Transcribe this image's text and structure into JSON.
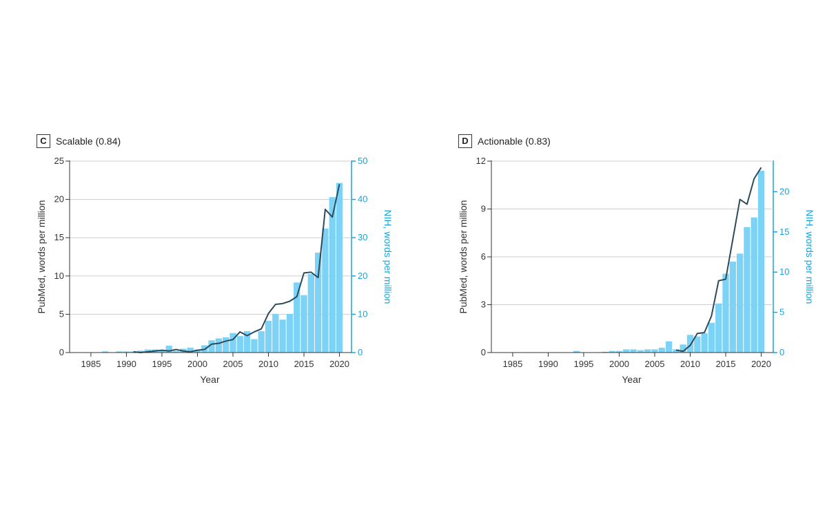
{
  "colors": {
    "bar": "#7dd3f5",
    "line": "#2c4a5a",
    "right_axis": "#1aa3d9",
    "grid": "#cccccc"
  },
  "chart_data": [
    {
      "type": "bar+line",
      "panel_letter": "C",
      "title": "Scalable (0.84)",
      "xlabel": "Year",
      "ylabel": "PubMed, words per million",
      "ylabel_right": "NIH, words per million",
      "xlim": [
        1982,
        2021.5
      ],
      "x_ticks": [
        1985,
        1990,
        1995,
        2000,
        2005,
        2010,
        2015,
        2020
      ],
      "ylim": [
        0,
        25
      ],
      "y_ticks": [
        0,
        5,
        10,
        15,
        20,
        25
      ],
      "ylim_right": [
        0,
        50
      ],
      "y_ticks_right": [
        0,
        10,
        20,
        30,
        40,
        50
      ],
      "grid": true,
      "bars": {
        "name": "NIH",
        "axis": "right",
        "x": [
          1987,
          1988,
          1989,
          1990,
          1991,
          1992,
          1993,
          1994,
          1995,
          1996,
          1997,
          1998,
          1999,
          2000,
          2001,
          2002,
          2003,
          2004,
          2005,
          2006,
          2007,
          2008,
          2009,
          2010,
          2011,
          2012,
          2013,
          2014,
          2015,
          2016,
          2017,
          2018,
          2019,
          2020
        ],
        "values": [
          0.3,
          0,
          0.3,
          0.3,
          0.3,
          0.5,
          0.8,
          0.8,
          0.5,
          1.8,
          0.4,
          1.0,
          1.3,
          0.8,
          1.9,
          3.2,
          3.7,
          4.0,
          5.1,
          4.3,
          5.6,
          3.5,
          5.6,
          8.3,
          10.1,
          8.6,
          10.1,
          18.3,
          15.0,
          20.5,
          26.1,
          32.4,
          40.6,
          44.3
        ]
      },
      "line": {
        "name": "PubMed",
        "axis": "left",
        "x": [
          1991,
          1992,
          1993,
          1994,
          1995,
          1996,
          1997,
          1998,
          1999,
          2000,
          2001,
          2002,
          2003,
          2004,
          2005,
          2006,
          2007,
          2008,
          2009,
          2010,
          2011,
          2012,
          2013,
          2014,
          2015,
          2016,
          2017,
          2018,
          2019,
          2020
        ],
        "values": [
          0.1,
          0,
          0.1,
          0.2,
          0.3,
          0.2,
          0.4,
          0.2,
          0.1,
          0.3,
          0.4,
          1.1,
          1.2,
          1.5,
          1.7,
          2.7,
          2.2,
          2.7,
          3.1,
          5.1,
          6.3,
          6.4,
          6.7,
          7.3,
          10.4,
          10.5,
          9.8,
          18.7,
          17.7,
          22.0
        ]
      }
    },
    {
      "type": "bar+line",
      "panel_letter": "D",
      "title": "Actionable (0.83)",
      "xlabel": "Year",
      "ylabel": "PubMed, words per million",
      "ylabel_right": "NIH, words per million",
      "xlim": [
        1982,
        2021.5
      ],
      "x_ticks": [
        1985,
        1990,
        1995,
        2000,
        2005,
        2010,
        2015,
        2020
      ],
      "ylim": [
        0,
        12
      ],
      "y_ticks": [
        0,
        3,
        6,
        9,
        12
      ],
      "ylim_right": [
        0,
        23.8
      ],
      "y_ticks_right": [
        0,
        5,
        10,
        15,
        20
      ],
      "grid": true,
      "bars": {
        "name": "NIH",
        "axis": "right",
        "x": [
          1994,
          1995,
          1996,
          1997,
          1998,
          1999,
          2000,
          2001,
          2002,
          2003,
          2004,
          2005,
          2006,
          2007,
          2008,
          2009,
          2010,
          2011,
          2012,
          2013,
          2014,
          2015,
          2016,
          2017,
          2018,
          2019,
          2020
        ],
        "values": [
          0.2,
          0,
          0,
          0,
          0.1,
          0.2,
          0.2,
          0.4,
          0.4,
          0.3,
          0.4,
          0.4,
          0.6,
          1.4,
          0.4,
          1.0,
          2.2,
          2.0,
          2.4,
          3.7,
          6.1,
          9.8,
          11.3,
          12.3,
          15.6,
          16.8,
          22.6
        ]
      },
      "line": {
        "name": "PubMed",
        "axis": "left",
        "x": [
          2008,
          2009,
          2010,
          2011,
          2012,
          2013,
          2014,
          2015,
          2016,
          2017,
          2018,
          2019,
          2020
        ],
        "values": [
          0.15,
          0.08,
          0.45,
          1.2,
          1.25,
          2.3,
          4.5,
          4.6,
          7.1,
          9.6,
          9.3,
          10.9,
          11.6
        ]
      }
    }
  ]
}
